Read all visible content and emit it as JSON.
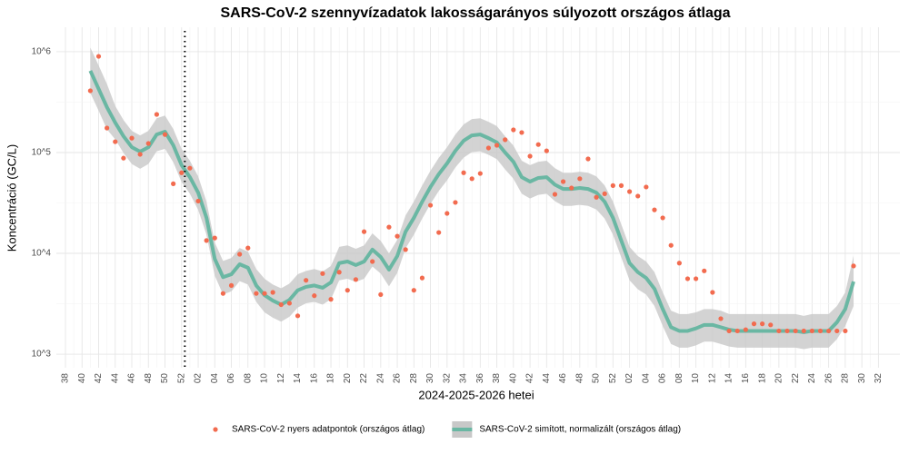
{
  "chart_data": {
    "type": "scatter-line",
    "title": "SARS-CoV-2 szennyvízadatok lakosságarányos súlyozott országos átlaga",
    "x_label": "2024-2025-2026 hetei",
    "y_label": "Koncentráció (GC/L)",
    "yscale": "log",
    "grid": true,
    "legend": "bottom",
    "ylim": [
      733,
      1750000
    ],
    "yticks": [
      {
        "value": 1000,
        "label": "10^3"
      },
      {
        "value": 10000,
        "label": "10^4"
      },
      {
        "value": 100000,
        "label": "10^5"
      },
      {
        "value": 1000000,
        "label": "10^6"
      }
    ],
    "categories": [
      "38",
      null,
      "40",
      null,
      "42",
      null,
      "44",
      null,
      "46",
      null,
      "48",
      null,
      "50",
      null,
      "52",
      null,
      "02",
      null,
      "04",
      null,
      "06",
      null,
      "08",
      null,
      "10",
      null,
      "12",
      null,
      "14",
      null,
      "16",
      null,
      "18",
      null,
      "20",
      null,
      "22",
      null,
      "24",
      null,
      "26",
      null,
      "28",
      null,
      "30",
      null,
      "32",
      null,
      "34",
      null,
      "36",
      null,
      "38",
      null,
      "40",
      null,
      "42",
      null,
      "44",
      null,
      "46",
      null,
      "48",
      null,
      "50",
      null,
      "52",
      null,
      "02",
      null,
      "04",
      null,
      "06",
      null,
      "08",
      null,
      "10",
      null,
      "12",
      null,
      "14",
      null,
      "16",
      null,
      "18",
      null,
      "20",
      null,
      "22",
      null,
      "24",
      null,
      "26",
      null,
      "28",
      null,
      "30",
      null,
      "32"
    ],
    "series": [
      {
        "name": "SARS-CoV-2 nyers adatpontok (országos átlag)",
        "kind": "points",
        "color": "#f26b4f",
        "values": [
          null,
          null,
          null,
          410000,
          900000,
          175000,
          128000,
          88000,
          139000,
          96000,
          123000,
          239000,
          151000,
          49000,
          63000,
          70000,
          33000,
          13400,
          14200,
          4000,
          4800,
          9800,
          11300,
          4000,
          4000,
          4100,
          3100,
          3200,
          2400,
          5400,
          3800,
          6300,
          3500,
          6500,
          4300,
          5500,
          16400,
          8300,
          3900,
          18200,
          14800,
          10900,
          4300,
          5700,
          30000,
          16100,
          24900,
          32000,
          63000,
          55000,
          62000,
          111000,
          118000,
          134000,
          168000,
          158000,
          92000,
          120000,
          104000,
          38500,
          51500,
          44500,
          55000,
          86500,
          36000,
          39000,
          47000,
          47000,
          41000,
          37000,
          45500,
          27000,
          22500,
          12000,
          8000,
          5600,
          5600,
          6700,
          4100,
          2250,
          1700,
          1700,
          1750,
          2000,
          2000,
          1950,
          1700,
          1700,
          1700,
          1700,
          1700,
          1700,
          1700,
          1700,
          1700,
          7500,
          null,
          null,
          null
        ]
      },
      {
        "name": "SARS-CoV-2 simított, normalizált (országos átlag)",
        "kind": "line",
        "color": "#6ab7a3",
        "values": [
          null,
          null,
          null,
          647000,
          428000,
          282000,
          198000,
          145000,
          113000,
          102000,
          113000,
          151000,
          161000,
          118000,
          75000,
          57000,
          40000,
          22500,
          8800,
          5800,
          6200,
          7800,
          7200,
          4800,
          3850,
          3400,
          3100,
          3450,
          4300,
          4650,
          4800,
          4550,
          5150,
          8000,
          8300,
          7650,
          8300,
          10900,
          9200,
          6900,
          9400,
          16400,
          22500,
          32500,
          45500,
          61000,
          78000,
          104000,
          131000,
          148000,
          151000,
          139000,
          126000,
          100000,
          81000,
          57000,
          51500,
          56000,
          57000,
          48000,
          43500,
          43500,
          44500,
          43500,
          40000,
          32500,
          22500,
          13400,
          8000,
          6500,
          5700,
          4450,
          2800,
          1850,
          1700,
          1700,
          1800,
          1950,
          1950,
          1850,
          1750,
          1700,
          1700,
          1700,
          1700,
          1700,
          1700,
          1700,
          1700,
          1650,
          1700,
          1700,
          1700,
          2070,
          2800,
          5250,
          null,
          null,
          null
        ],
        "band": {
          "color": "#c8c8c8",
          "lower": [
            null,
            null,
            null,
            390000,
            260000,
            170000,
            135000,
            99000,
            77000,
            69000,
            77000,
            103000,
            109000,
            80000,
            51000,
            39000,
            27000,
            15300,
            6000,
            3900,
            4200,
            5300,
            4900,
            3300,
            2600,
            2300,
            2100,
            2350,
            2900,
            3200,
            3300,
            3100,
            3500,
            5400,
            5600,
            5200,
            5600,
            7400,
            6300,
            4700,
            6400,
            11200,
            15300,
            22100,
            30900,
            41500,
            53000,
            71000,
            89000,
            101000,
            103000,
            95000,
            86000,
            68000,
            55000,
            39000,
            35000,
            38000,
            39000,
            33000,
            29600,
            29600,
            30300,
            29600,
            27200,
            22100,
            15300,
            9100,
            5400,
            4400,
            3900,
            3000,
            1900,
            1260,
            1160,
            1160,
            1220,
            1330,
            1330,
            1260,
            1190,
            1160,
            1160,
            1160,
            1160,
            1160,
            1160,
            1160,
            1160,
            1120,
            1160,
            1160,
            1160,
            1410,
            1900,
            3000,
            null,
            null,
            null
          ],
          "upper": [
            null,
            null,
            null,
            1100000,
            730000,
            480000,
            290000,
            210000,
            164000,
            148000,
            164000,
            219000,
            233000,
            171000,
            109000,
            83000,
            58000,
            32600,
            12800,
            8400,
            9000,
            11300,
            10400,
            7000,
            5600,
            4900,
            4500,
            5000,
            6200,
            6700,
            7000,
            6600,
            7500,
            11600,
            12000,
            11100,
            12000,
            15800,
            13300,
            10000,
            13600,
            23800,
            32600,
            47100,
            66000,
            88500,
            113000,
            151000,
            190000,
            215000,
            219000,
            202000,
            183000,
            145000,
            117000,
            83000,
            75000,
            81000,
            83000,
            70000,
            63000,
            63000,
            64500,
            63000,
            58000,
            47100,
            32600,
            19400,
            11600,
            9400,
            8300,
            6500,
            4100,
            2700,
            2500,
            2500,
            2600,
            2800,
            2800,
            2700,
            2500,
            2500,
            2500,
            2500,
            2500,
            2500,
            2500,
            2500,
            2500,
            2400,
            2500,
            2500,
            2500,
            3000,
            4100,
            9500,
            null,
            null,
            null
          ]
        }
      }
    ]
  }
}
